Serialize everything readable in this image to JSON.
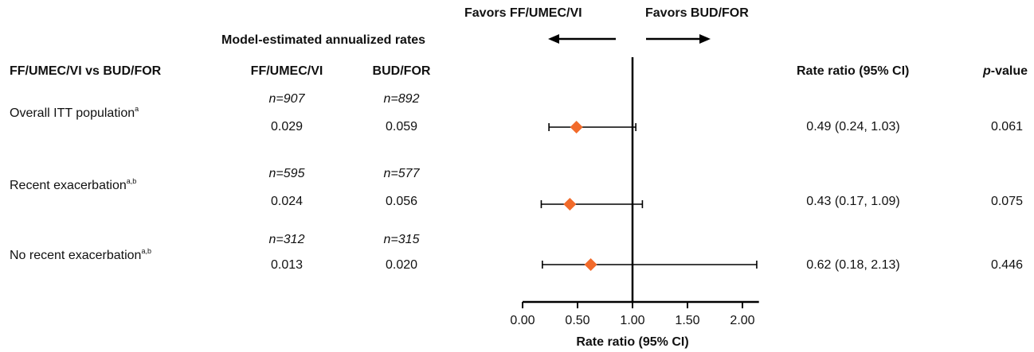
{
  "header": {
    "favors_left": "Favors FF/UMEC/VI",
    "favors_right": "Favors BUD/FOR",
    "model_rates": "Model-estimated annualized rates"
  },
  "columns": {
    "comparison": "FF/UMEC/VI vs BUD/FOR",
    "arm1": "FF/UMEC/VI",
    "arm2": "BUD/FOR",
    "rr": "Rate ratio (95% CI)",
    "p_prefix": "p",
    "p_suffix": "-value"
  },
  "rows": [
    {
      "label": "Overall ITT population",
      "sup": "a",
      "n1": "n=907",
      "n2": "n=892",
      "rate1": "0.029",
      "rate2": "0.059",
      "rr_text": "0.49 (0.24, 1.03)",
      "p": "0.061"
    },
    {
      "label": "Recent exacerbation",
      "sup": "a,b",
      "n1": "n=595",
      "n2": "n=577",
      "rate1": "0.024",
      "rate2": "0.056",
      "rr_text": "0.43 (0.17, 1.09)",
      "p": "0.075"
    },
    {
      "label": "No recent exacerbation",
      "sup": "a,b",
      "n1": "n=312",
      "n2": "n=315",
      "rate1": "0.013",
      "rate2": "0.020",
      "rr_text": "0.62 (0.18, 2.13)",
      "p": "0.446"
    }
  ],
  "chart_data": {
    "type": "scatter",
    "subtype": "forest-plot",
    "categories": [
      "Overall ITT population",
      "Recent exacerbation",
      "No recent exacerbation"
    ],
    "estimate": [
      0.49,
      0.43,
      0.62
    ],
    "ci_lower": [
      0.24,
      0.17,
      0.18
    ],
    "ci_upper": [
      1.03,
      1.09,
      2.13
    ],
    "xlabel": "Rate ratio (95% CI)",
    "xlim": [
      0,
      2.15
    ],
    "xticks": [
      0.0,
      0.5,
      1.0,
      1.5,
      2.0
    ],
    "xtick_labels": [
      "0.00",
      "0.50",
      "1.00",
      "1.50",
      "2.00"
    ],
    "reference_line": 1.0,
    "grid": false,
    "marker_color": "#f26b2b"
  }
}
